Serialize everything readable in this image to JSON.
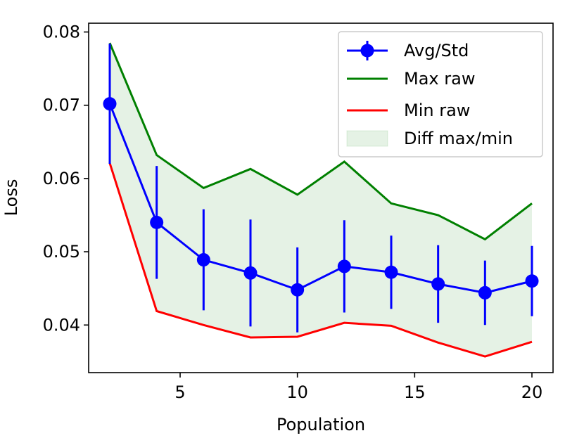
{
  "chart_data": {
    "type": "line",
    "title": "",
    "xlabel": "Population",
    "ylabel": "Loss",
    "xlim": [
      1.1,
      20.9
    ],
    "ylim": [
      0.0335,
      0.0812
    ],
    "xticks": [
      5,
      10,
      15,
      20
    ],
    "xtick_labels": [
      "5",
      "10",
      "15",
      "20"
    ],
    "yticks": [
      0.04,
      0.05,
      0.06,
      0.07,
      0.08
    ],
    "ytick_labels": [
      "0.04",
      "0.05",
      "0.06",
      "0.07",
      "0.08"
    ],
    "grid": false,
    "legend_position": "top-right",
    "x": [
      2,
      4,
      6,
      8,
      10,
      12,
      14,
      16,
      18,
      20
    ],
    "series": [
      {
        "name": "Avg/Std",
        "kind": "errorbar",
        "color": "#0000ff",
        "values": [
          0.0702,
          0.054,
          0.0489,
          0.0471,
          0.0448,
          0.048,
          0.0472,
          0.0456,
          0.0444,
          0.046
        ],
        "std": [
          0.0082,
          0.0077,
          0.0069,
          0.0073,
          0.0058,
          0.0063,
          0.005,
          0.0053,
          0.0044,
          0.0048
        ]
      },
      {
        "name": "Max raw",
        "kind": "line",
        "color": "#008000",
        "values": [
          0.0785,
          0.0632,
          0.0587,
          0.0613,
          0.0578,
          0.0623,
          0.0566,
          0.055,
          0.0517,
          0.0566
        ]
      },
      {
        "name": "Min raw",
        "kind": "line",
        "color": "#ff0000",
        "values": [
          0.0621,
          0.0419,
          0.04,
          0.0383,
          0.0384,
          0.0403,
          0.0399,
          0.0376,
          0.0357,
          0.0377
        ]
      },
      {
        "name": "Diff max/min",
        "kind": "fill_between",
        "color": "#008000",
        "opacity": 0.1
      }
    ],
    "legend": [
      "Avg/Std",
      "Max raw",
      "Min raw",
      "Diff max/min"
    ]
  }
}
